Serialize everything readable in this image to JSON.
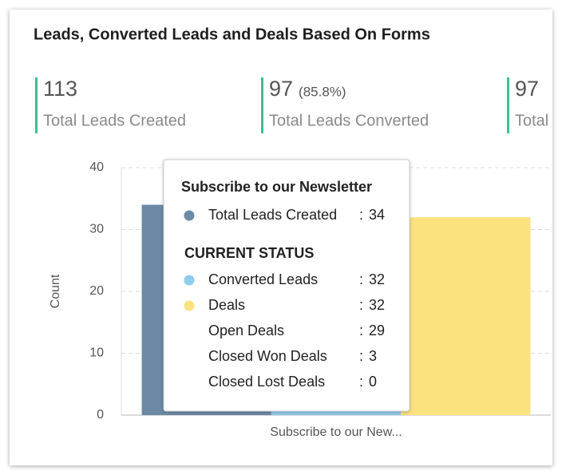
{
  "header": {
    "title": "Leads, Converted Leads and Deals Based On Forms"
  },
  "kpis": [
    {
      "value": "113",
      "label": "Total Leads Created"
    },
    {
      "value": "97",
      "sub": "(85.8%)",
      "label": "Total Leads Converted"
    },
    {
      "value": "97",
      "label": "Total"
    }
  ],
  "chart_data": {
    "type": "bar",
    "categories": [
      "Subscribe to our New..."
    ],
    "series": [
      {
        "name": "Total Leads Created",
        "color": "#6c8aa5",
        "values": [
          34
        ]
      },
      {
        "name": "Converted Leads",
        "color": "#8fcdeb",
        "values": [
          32
        ]
      },
      {
        "name": "Deals",
        "color": "#fbe27e",
        "values": [
          32
        ]
      }
    ],
    "ylabel": "Count",
    "ylim": [
      0,
      40
    ],
    "yticks": [
      0,
      10,
      20,
      30,
      40
    ],
    "grid": true,
    "tooltip": {
      "title": "Subscribe to our Newsletter",
      "separator": ":",
      "section": "CURRENT STATUS",
      "rows": [
        {
          "label": "Total Leads Created",
          "value": "34",
          "color": "#6c8aa5"
        },
        {
          "label": "Converted Leads",
          "value": "32",
          "color": "#8fcdeb"
        },
        {
          "label": "Deals",
          "value": "32",
          "color": "#fbe27e"
        },
        {
          "label": "Open Deals",
          "value": "29"
        },
        {
          "label": "Closed Won Deals",
          "value": "3"
        },
        {
          "label": "Closed Lost Deals",
          "value": "0"
        }
      ]
    }
  }
}
